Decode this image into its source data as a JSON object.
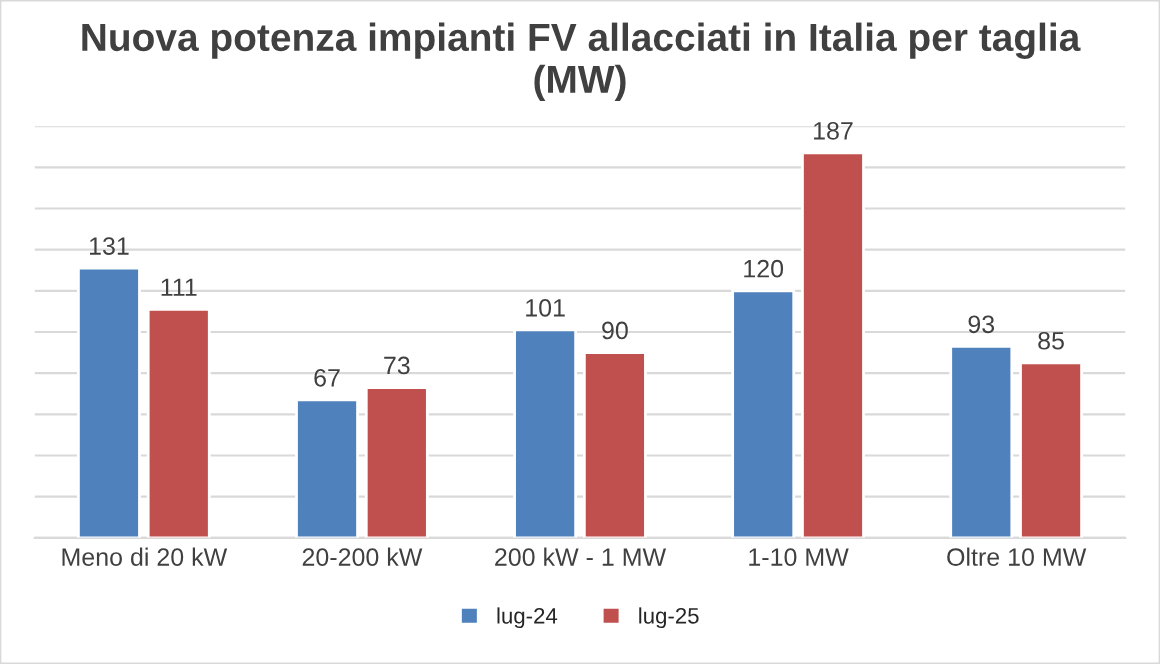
{
  "chart_data": {
    "type": "bar",
    "title": "Nuova potenza impianti FV allacciati in Italia per taglia\n(MW)",
    "categories": [
      "Meno di 20 kW",
      "20-200 kW",
      "200 kW - 1 MW",
      "1-10 MW",
      "Oltre 10 MW"
    ],
    "series": [
      {
        "name": "lug-24",
        "color": "#4f81bd",
        "values": [
          131,
          67,
          101,
          120,
          93
        ]
      },
      {
        "name": "lug-25",
        "color": "#c0504d",
        "values": [
          111,
          73,
          90,
          187,
          85
        ]
      }
    ],
    "ylim": [
      0,
      200
    ],
    "yticks": [
      {
        "value": 0,
        "label": null
      },
      {
        "value": 20,
        "label": null
      },
      {
        "value": 40,
        "label": null
      },
      {
        "value": 60,
        "label": null
      },
      {
        "value": 80,
        "label": null
      },
      {
        "value": 100,
        "label": null
      },
      {
        "value": 120,
        "label": null
      },
      {
        "value": 140,
        "label": null
      },
      {
        "value": 160,
        "label": null
      },
      {
        "value": 180,
        "label": null
      },
      {
        "value": 200,
        "label": null
      }
    ],
    "grid": "y",
    "legend": "bottom",
    "data_labels": true,
    "tick_labels": "x"
  }
}
